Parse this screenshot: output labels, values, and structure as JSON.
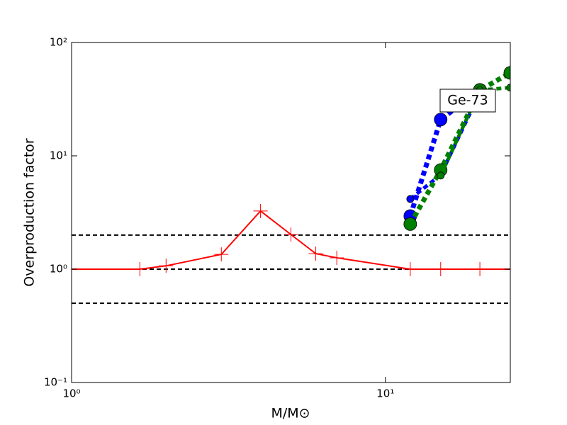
{
  "chart_data": {
    "type": "line",
    "annotation": "Ge-73",
    "xlabel": "M/M⊙",
    "ylabel": "Overproduction factor",
    "xscale": "log",
    "yscale": "log",
    "xlim": [
      1,
      25
    ],
    "ylim": [
      0.1,
      100
    ],
    "xticks": [
      {
        "value": 1,
        "label": "10⁰"
      },
      {
        "value": 10,
        "label": "10¹"
      }
    ],
    "yticks": [
      {
        "value": 0.1,
        "label": "10⁻¹"
      },
      {
        "value": 1,
        "label": "10⁰"
      },
      {
        "value": 10,
        "label": "10¹"
      },
      {
        "value": 100,
        "label": "10²"
      }
    ],
    "hlines": [
      2,
      1,
      0.5
    ],
    "hline_color": "#000000",
    "series": [
      {
        "color": "#ff0000",
        "marker": "+",
        "linestyle": "solid",
        "x": [
          1,
          1.65,
          2,
          3,
          4,
          5,
          6,
          7,
          12,
          15,
          20,
          25
        ],
        "values": [
          1,
          1,
          1.07,
          1.35,
          3.26,
          2.02,
          1.37,
          1.26,
          1,
          1,
          1,
          1
        ]
      },
      {
        "color": "#0000ff",
        "marker": "o",
        "linestyle": "dotted",
        "x": [
          12,
          15,
          20
        ],
        "values": [
          2.94,
          20.9,
          38.2
        ]
      },
      {
        "color": "#0000ff",
        "marker": "small-o",
        "linestyle": "dotted",
        "x": [
          12,
          15,
          20
        ],
        "values": [
          4.16,
          6.8,
          36
        ]
      },
      {
        "color": "#008000",
        "marker": "o",
        "linestyle": "dotted",
        "x": [
          12,
          15,
          20,
          25
        ],
        "values": [
          2.5,
          7.5,
          38,
          54
        ]
      },
      {
        "color": "#008000",
        "marker": "small-o",
        "linestyle": "dotted",
        "x": [
          15,
          20,
          25
        ],
        "values": [
          6.7,
          38,
          40
        ]
      }
    ]
  }
}
